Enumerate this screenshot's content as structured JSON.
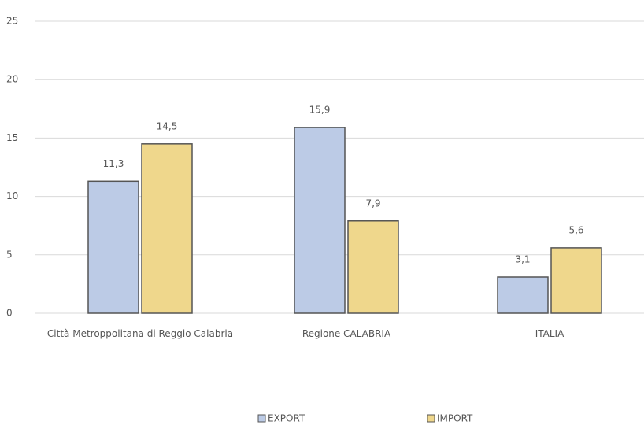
{
  "chart_data": {
    "type": "bar",
    "categories": [
      "Città Metroppolitana di Reggio Calabria",
      "Regione CALABRIA",
      "ITALIA"
    ],
    "series": [
      {
        "name": "EXPORT",
        "color": "#bccbe6",
        "values": [
          11.3,
          15.9,
          3.1
        ],
        "value_labels": [
          "11,3",
          "15,9",
          "3,1"
        ]
      },
      {
        "name": "IMPORT",
        "color": "#efd78c",
        "values": [
          14.5,
          7.9,
          5.6
        ],
        "value_labels": [
          "14,5",
          "7,9",
          "5,6"
        ]
      }
    ],
    "ylim": [
      0,
      25
    ],
    "yticks": [
      0,
      5,
      10,
      15,
      20,
      25
    ],
    "grid": true,
    "legend": "bottom"
  }
}
